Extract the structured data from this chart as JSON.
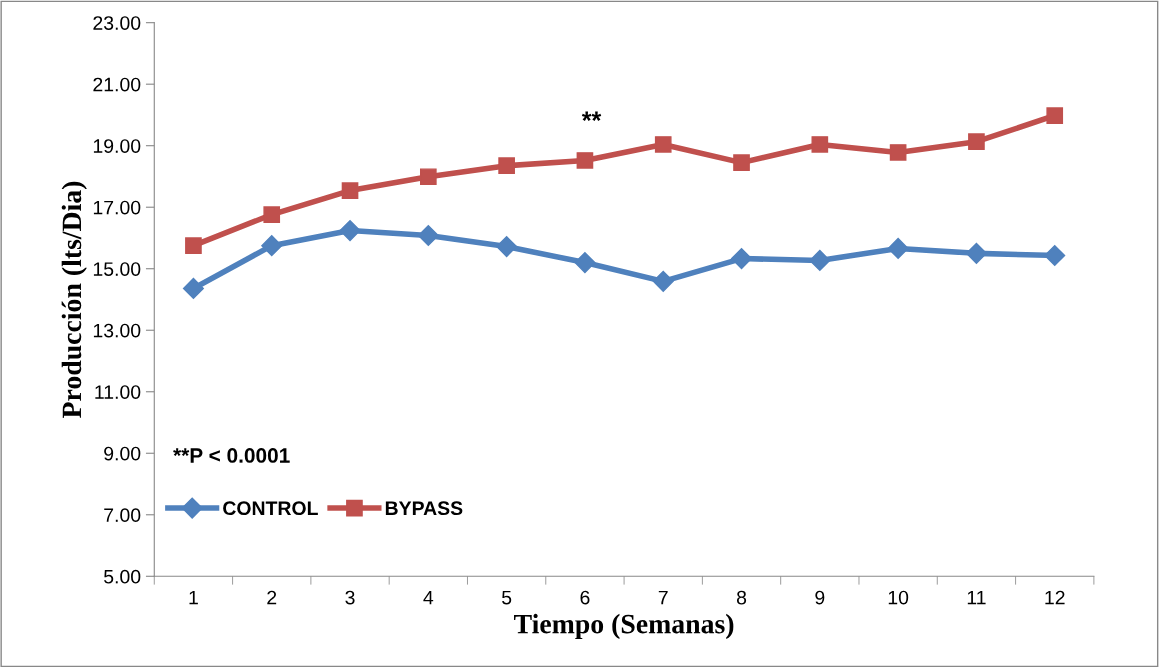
{
  "chart_data": {
    "type": "line",
    "xlabel": "Tiempo (Semanas)",
    "ylabel": "Producción (lts/Dia)",
    "categories": [
      "1",
      "2",
      "3",
      "4",
      "5",
      "6",
      "7",
      "8",
      "9",
      "10",
      "11",
      "12"
    ],
    "series": [
      {
        "name": "CONTROL",
        "color": "#4f81bd",
        "marker": "diamond",
        "values": [
          14.36,
          15.75,
          16.24,
          16.08,
          15.72,
          15.2,
          14.59,
          15.33,
          15.27,
          15.66,
          15.5,
          15.43
        ]
      },
      {
        "name": "BYPASS",
        "color": "#c0504d",
        "marker": "square",
        "values": [
          15.75,
          16.76,
          17.54,
          17.99,
          18.35,
          18.52,
          19.04,
          18.45,
          19.04,
          18.78,
          19.13,
          19.98
        ]
      }
    ],
    "ylim": [
      5,
      23
    ],
    "yticks": [
      {
        "value": 5,
        "label": "5.00"
      },
      {
        "value": 7,
        "label": "7.00"
      },
      {
        "value": 9,
        "label": "9.00"
      },
      {
        "value": 11,
        "label": "11.00"
      },
      {
        "value": 13,
        "label": "13.00"
      },
      {
        "value": 15,
        "label": "15.00"
      },
      {
        "value": 17,
        "label": "17.00"
      },
      {
        "value": 19,
        "label": "19.00"
      },
      {
        "value": 21,
        "label": "21.00"
      },
      {
        "value": 23,
        "label": "23.00"
      }
    ],
    "annotations": [
      "**",
      "**P < 0.0001"
    ],
    "legend": "left",
    "grid": false,
    "line_style": "solid"
  }
}
